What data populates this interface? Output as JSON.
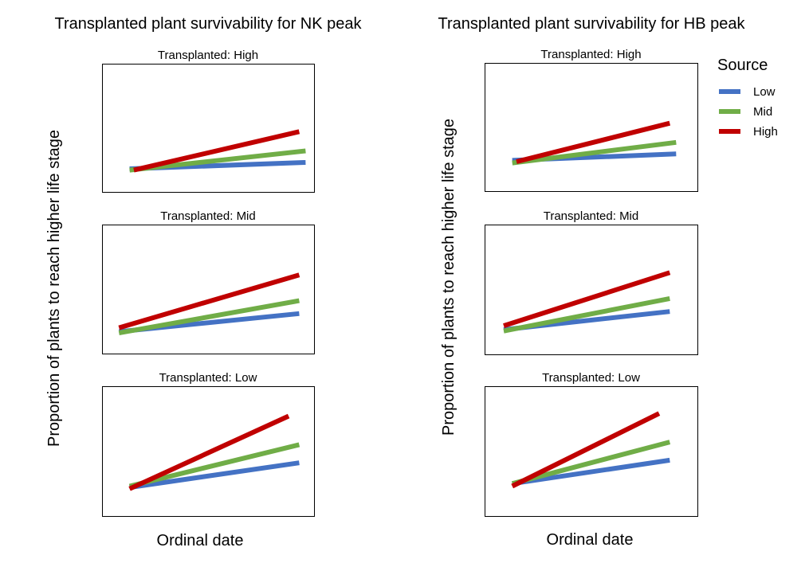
{
  "colors": {
    "Low": "#4472c4",
    "Mid": "#70ad47",
    "High": "#c00000"
  },
  "legend": {
    "title": "Source",
    "entries": [
      {
        "label": "Low",
        "series": "Low"
      },
      {
        "label": "Mid",
        "series": "Mid"
      },
      {
        "label": "High",
        "series": "High"
      }
    ]
  },
  "chart_data": [
    {
      "type": "line",
      "title": "Transplanted plant survivability for NK peak",
      "ylabel": "Proportion of plants to reach higher life stage",
      "xlabel": "Ordinal date",
      "xlim": [
        0,
        1
      ],
      "ylim": [
        0,
        1
      ],
      "grid": false,
      "panels": [
        {
          "title": "Transplanted: High",
          "series": [
            {
              "name": "Low",
              "x": [
                0.13,
                0.96
              ],
              "y": [
                0.18,
                0.23
              ]
            },
            {
              "name": "Mid",
              "x": [
                0.13,
                0.96
              ],
              "y": [
                0.17,
                0.32
              ]
            },
            {
              "name": "High",
              "x": [
                0.15,
                0.93
              ],
              "y": [
                0.17,
                0.47
              ]
            }
          ]
        },
        {
          "title": "Transplanted: Mid",
          "series": [
            {
              "name": "Low",
              "x": [
                0.08,
                0.93
              ],
              "y": [
                0.17,
                0.31
              ]
            },
            {
              "name": "Mid",
              "x": [
                0.08,
                0.93
              ],
              "y": [
                0.16,
                0.41
              ]
            },
            {
              "name": "High",
              "x": [
                0.08,
                0.93
              ],
              "y": [
                0.2,
                0.61
              ]
            }
          ]
        },
        {
          "title": "Transplanted: Low",
          "series": [
            {
              "name": "Low",
              "x": [
                0.13,
                0.93
              ],
              "y": [
                0.22,
                0.41
              ]
            },
            {
              "name": "Mid",
              "x": [
                0.13,
                0.93
              ],
              "y": [
                0.23,
                0.55
              ]
            },
            {
              "name": "High",
              "x": [
                0.13,
                0.88
              ],
              "y": [
                0.21,
                0.77
              ]
            }
          ]
        }
      ]
    },
    {
      "type": "line",
      "title": "Transplanted plant survivability for HB peak",
      "ylabel": "Proportion of plants to reach higher life stage",
      "xlabel": "Ordinal date",
      "xlim": [
        0,
        1
      ],
      "ylim": [
        0,
        1
      ],
      "grid": false,
      "panels": [
        {
          "title": "Transplanted: High",
          "series": [
            {
              "name": "Low",
              "x": [
                0.13,
                0.9
              ],
              "y": [
                0.24,
                0.29
              ]
            },
            {
              "name": "Mid",
              "x": [
                0.13,
                0.9
              ],
              "y": [
                0.22,
                0.38
              ]
            },
            {
              "name": "High",
              "x": [
                0.15,
                0.87
              ],
              "y": [
                0.23,
                0.53
              ]
            }
          ]
        },
        {
          "title": "Transplanted: Mid",
          "series": [
            {
              "name": "Low",
              "x": [
                0.09,
                0.87
              ],
              "y": [
                0.19,
                0.33
              ]
            },
            {
              "name": "Mid",
              "x": [
                0.09,
                0.87
              ],
              "y": [
                0.18,
                0.43
              ]
            },
            {
              "name": "High",
              "x": [
                0.09,
                0.87
              ],
              "y": [
                0.22,
                0.63
              ]
            }
          ]
        },
        {
          "title": "Transplanted: Low",
          "series": [
            {
              "name": "Low",
              "x": [
                0.13,
                0.87
              ],
              "y": [
                0.25,
                0.43
              ]
            },
            {
              "name": "Mid",
              "x": [
                0.13,
                0.87
              ],
              "y": [
                0.25,
                0.57
              ]
            },
            {
              "name": "High",
              "x": [
                0.13,
                0.82
              ],
              "y": [
                0.23,
                0.79
              ]
            }
          ]
        }
      ]
    }
  ]
}
